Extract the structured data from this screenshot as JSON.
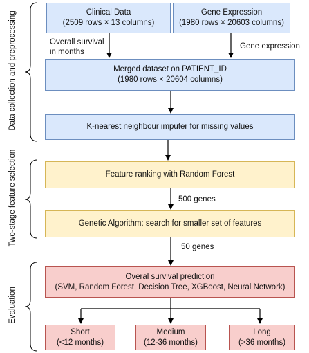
{
  "sections": {
    "collection": "Data collection and preprocessing",
    "selection": "Two-stage feature selection",
    "evaluation": "Evaluation"
  },
  "boxes": {
    "clinical": {
      "title": "Clinical Data",
      "sub": "(2509 rows × 13 columns)"
    },
    "gene": {
      "title": "Gene Expression",
      "sub": "(1980 rows × 20603 columns)"
    },
    "merged": {
      "title": "Merged dataset on PATIENT_ID",
      "sub": "(1980 rows × 20604 columns)"
    },
    "knn": {
      "title": "K-nearest neighbour imputer for missing values"
    },
    "rf": {
      "title": "Feature ranking with Random Forest"
    },
    "ga": {
      "title": "Genetic Algorithm: search for smaller set of features"
    },
    "pred": {
      "title": "Overal survival prediction",
      "sub": "(SVM, Random Forest, Decision Tree, XGBoost, Neural Network)"
    },
    "short": {
      "title": "Short",
      "sub": "(<12 months)"
    },
    "medium": {
      "title": "Medium",
      "sub": "(12-36 months)"
    },
    "long": {
      "title": "Long",
      "sub": "(>36 months)"
    }
  },
  "edge_labels": {
    "survival_1": "Overall survival",
    "survival_2": "in months",
    "gene_expr": "Gene expression",
    "genes_500": "500 genes",
    "genes_50": "50 genes"
  }
}
